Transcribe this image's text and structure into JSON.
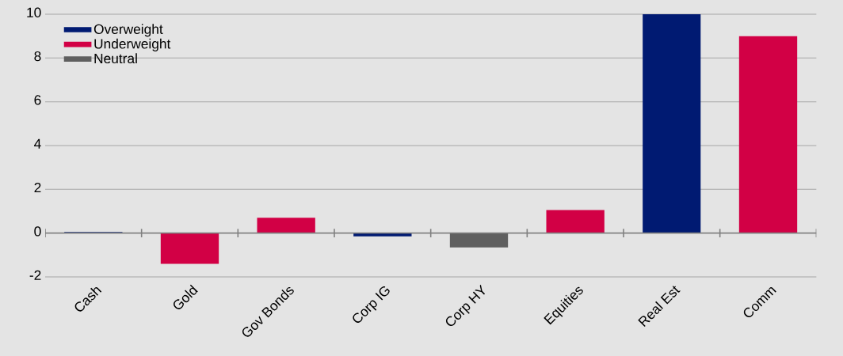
{
  "chart_data": {
    "type": "bar",
    "categories": [
      "Cash",
      "Gold",
      "Gov Bonds",
      "Corp IG",
      "Corp HY",
      "Equities",
      "Real Est",
      "Comm"
    ],
    "series": [
      {
        "name": "Overweight",
        "color": "#001a72",
        "values": [
          0.05,
          null,
          null,
          -0.15,
          null,
          null,
          10.0,
          null
        ]
      },
      {
        "name": "Underweight",
        "color": "#d20045",
        "values": [
          null,
          -1.4,
          0.7,
          null,
          null,
          1.05,
          null,
          9.0
        ]
      },
      {
        "name": "Neutral",
        "color": "#5f5f5f",
        "values": [
          null,
          null,
          null,
          null,
          -0.65,
          null,
          null,
          null
        ]
      }
    ],
    "ylim": [
      -2,
      10
    ],
    "yticks": [
      -2,
      0,
      2,
      4,
      6,
      8,
      10
    ],
    "grid": "y",
    "legend": "top left"
  }
}
